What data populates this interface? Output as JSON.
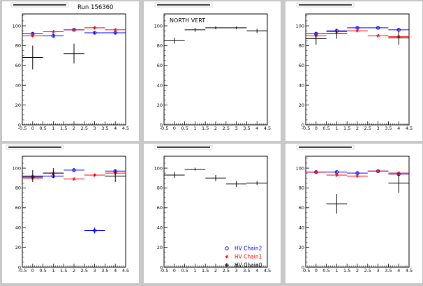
{
  "colors": {
    "background": "#c8c8c8",
    "pad": "#ffffff",
    "frame": "#000000",
    "chain0": "#000000",
    "chain1": "#ff0000",
    "chain2": "#0000ff"
  },
  "legend": {
    "position": "bottom-right of middle-lower pad",
    "entries": [
      {
        "series": "chain2",
        "label": "HV Chain2",
        "marker": "circle",
        "color": "#0000ff"
      },
      {
        "series": "chain1",
        "label": "HV Chain1",
        "marker": "star",
        "color": "#ff0000"
      },
      {
        "series": "chain0",
        "label": "HV Chain0",
        "marker": "plus",
        "color": "#000000"
      }
    ]
  },
  "chart_data": [
    {
      "type": "scatter",
      "pad_title": "",
      "annotation": "Run 156360",
      "xlim": [
        -0.5,
        4.5
      ],
      "ylim": [
        0,
        112
      ],
      "x_ticks": [
        "-0.5",
        "0",
        "0.5",
        "1",
        "1.5",
        "2",
        "2.5",
        "3",
        "3.5",
        "4",
        "4.5"
      ],
      "y_ticks": [
        "0",
        "20",
        "40",
        "60",
        "80",
        "100"
      ],
      "grid": false,
      "series": [
        {
          "key": "chain2",
          "marker": "circle",
          "color": "#0000ff",
          "points": [
            {
              "x": 0,
              "y": 92,
              "yerr": 1.5
            },
            {
              "x": 1,
              "y": 90,
              "yerr": 1.5
            },
            {
              "x": 2,
              "y": 96,
              "yerr": 1.5
            },
            {
              "x": 3,
              "y": 93,
              "yerr": 1.5
            },
            {
              "x": 4,
              "y": 93,
              "yerr": 1.5
            }
          ]
        },
        {
          "key": "chain1",
          "marker": "star",
          "color": "#ff0000",
          "points": [
            {
              "x": 0,
              "y": 90,
              "yerr": 1.5
            },
            {
              "x": 1,
              "y": 94,
              "yerr": 1.5
            },
            {
              "x": 2,
              "y": 96,
              "yerr": 1.5
            },
            {
              "x": 3,
              "y": 98,
              "yerr": 1.5
            },
            {
              "x": 4,
              "y": 96,
              "yerr": 1.5
            }
          ]
        },
        {
          "key": "chain0",
          "marker": "plus",
          "color": "#000000",
          "points": [
            {
              "x": 0,
              "y": 68,
              "yerr": 12
            },
            {
              "x": 2,
              "y": 72,
              "yerr": 10
            }
          ]
        }
      ]
    },
    {
      "type": "scatter",
      "pad_title": "",
      "annotation": "NORTH VERT",
      "xlim": [
        -0.5,
        4.5
      ],
      "ylim": [
        0,
        112
      ],
      "x_ticks": [
        "-0.5",
        "0",
        "0.5",
        "1",
        "1.5",
        "2",
        "2.5",
        "3",
        "3.5",
        "4",
        "4.5"
      ],
      "y_ticks": [
        "0",
        "20",
        "40",
        "60",
        "80",
        "100"
      ],
      "grid": false,
      "series": [
        {
          "key": "chain0",
          "marker": "plus",
          "color": "#000000",
          "points": [
            {
              "x": 0,
              "y": 85,
              "yerr": 3
            },
            {
              "x": 1,
              "y": 96,
              "yerr": 2
            },
            {
              "x": 2,
              "y": 98,
              "yerr": 1.5
            },
            {
              "x": 3,
              "y": 98,
              "yerr": 1.5
            },
            {
              "x": 4,
              "y": 95,
              "yerr": 2
            }
          ]
        }
      ]
    },
    {
      "type": "scatter",
      "pad_title": "",
      "annotation": "",
      "xlim": [
        -0.5,
        4.5
      ],
      "ylim": [
        0,
        112
      ],
      "x_ticks": [
        "-0.5",
        "0",
        "0.5",
        "1",
        "1.5",
        "2",
        "2.5",
        "3",
        "3.5",
        "4",
        "4.5"
      ],
      "y_ticks": [
        "0",
        "20",
        "40",
        "60",
        "80",
        "100"
      ],
      "grid": false,
      "series": [
        {
          "key": "chain2",
          "marker": "circle",
          "color": "#0000ff",
          "points": [
            {
              "x": 0,
              "y": 92,
              "yerr": 2
            },
            {
              "x": 1,
              "y": 95,
              "yerr": 1.5
            },
            {
              "x": 2,
              "y": 98,
              "yerr": 1.5
            },
            {
              "x": 3,
              "y": 98,
              "yerr": 1.5
            },
            {
              "x": 4,
              "y": 96,
              "yerr": 1.5
            }
          ]
        },
        {
          "key": "chain1",
          "marker": "star",
          "color": "#ff0000",
          "points": [
            {
              "x": 0,
              "y": 90,
              "yerr": 2
            },
            {
              "x": 1,
              "y": 94,
              "yerr": 1.5
            },
            {
              "x": 2,
              "y": 95,
              "yerr": 1.5
            },
            {
              "x": 3,
              "y": 90,
              "yerr": 1.5
            },
            {
              "x": 4,
              "y": 89,
              "yerr": 1.5
            }
          ]
        },
        {
          "key": "chain0",
          "marker": "plus",
          "color": "#000000",
          "points": [
            {
              "x": 0,
              "y": 87,
              "yerr": 6
            },
            {
              "x": 1,
              "y": 92,
              "yerr": 5
            },
            {
              "x": 4,
              "y": 88,
              "yerr": 7
            }
          ]
        }
      ]
    },
    {
      "type": "scatter",
      "pad_title": "",
      "annotation": "",
      "xlim": [
        -0.5,
        4.5
      ],
      "ylim": [
        0,
        112
      ],
      "x_ticks": [
        "-0.5",
        "0",
        "0.5",
        "1",
        "1.5",
        "2",
        "2.5",
        "3",
        "3.5",
        "4",
        "4.5"
      ],
      "y_ticks": [
        "0",
        "20",
        "40",
        "60",
        "80",
        "100"
      ],
      "grid": false,
      "series": [
        {
          "key": "chain2",
          "marker": "circle",
          "color": "#0000ff",
          "points": [
            {
              "x": 0,
              "y": 91,
              "yerr": 1.5
            },
            {
              "x": 1,
              "y": 92,
              "yerr": 1.5
            },
            {
              "x": 2,
              "y": 98,
              "yerr": 1.5
            },
            {
              "x": 3,
              "y": 37,
              "yerr": 3
            },
            {
              "x": 4,
              "y": 97,
              "yerr": 1.5
            }
          ]
        },
        {
          "key": "chain1",
          "marker": "star",
          "color": "#ff0000",
          "points": [
            {
              "x": 0,
              "y": 90,
              "yerr": 1.5
            },
            {
              "x": 1,
              "y": 95,
              "yerr": 1.5
            },
            {
              "x": 2,
              "y": 89,
              "yerr": 1.5
            },
            {
              "x": 3,
              "y": 93,
              "yerr": 1.5
            },
            {
              "x": 4,
              "y": 95,
              "yerr": 1.5
            }
          ]
        },
        {
          "key": "chain0",
          "marker": "plus",
          "color": "#000000",
          "points": [
            {
              "x": 0,
              "y": 92,
              "yerr": 6
            },
            {
              "x": 1,
              "y": 95,
              "yerr": 5
            },
            {
              "x": 4,
              "y": 92,
              "yerr": 6
            }
          ]
        }
      ]
    },
    {
      "type": "scatter",
      "pad_title": "",
      "annotation": "",
      "xlim": [
        -0.5,
        4.5
      ],
      "ylim": [
        0,
        112
      ],
      "x_ticks": [
        "-0.5",
        "0",
        "0.5",
        "1",
        "1.5",
        "2",
        "2.5",
        "3",
        "3.5",
        "4",
        "4.5"
      ],
      "y_ticks": [
        "0",
        "20",
        "40",
        "60",
        "80",
        "100"
      ],
      "grid": false,
      "legend": true,
      "series": [
        {
          "key": "chain0",
          "marker": "plus",
          "color": "#000000",
          "points": [
            {
              "x": 0,
              "y": 93,
              "yerr": 3
            },
            {
              "x": 1,
              "y": 99,
              "yerr": 1.5
            },
            {
              "x": 2,
              "y": 90,
              "yerr": 3
            },
            {
              "x": 3,
              "y": 84,
              "yerr": 3
            },
            {
              "x": 4,
              "y": 85,
              "yerr": 2
            }
          ]
        }
      ]
    },
    {
      "type": "scatter",
      "pad_title": "",
      "annotation": "",
      "xlim": [
        -0.5,
        4.5
      ],
      "ylim": [
        0,
        112
      ],
      "x_ticks": [
        "-0.5",
        "0",
        "0.5",
        "1",
        "1.5",
        "2",
        "2.5",
        "3",
        "3.5",
        "4",
        "4.5"
      ],
      "y_ticks": [
        "0",
        "20",
        "40",
        "60",
        "80",
        "100"
      ],
      "grid": false,
      "series": [
        {
          "key": "chain2",
          "marker": "circle",
          "color": "#0000ff",
          "points": [
            {
              "x": 0,
              "y": 96,
              "yerr": 1.5
            },
            {
              "x": 1,
              "y": 96,
              "yerr": 1.5
            },
            {
              "x": 2,
              "y": 95,
              "yerr": 1.5
            },
            {
              "x": 3,
              "y": 97,
              "yerr": 1.5
            },
            {
              "x": 4,
              "y": 94,
              "yerr": 1.5
            }
          ]
        },
        {
          "key": "chain1",
          "marker": "star",
          "color": "#ff0000",
          "points": [
            {
              "x": 0,
              "y": 96,
              "yerr": 1.5
            },
            {
              "x": 1,
              "y": 93,
              "yerr": 1.5
            },
            {
              "x": 2,
              "y": 92,
              "yerr": 1.5
            },
            {
              "x": 3,
              "y": 97,
              "yerr": 1.5
            },
            {
              "x": 4,
              "y": 95,
              "yerr": 1.5
            }
          ]
        },
        {
          "key": "chain0",
          "marker": "plus",
          "color": "#000000",
          "points": [
            {
              "x": 1,
              "y": 64,
              "yerr": 10
            },
            {
              "x": 4,
              "y": 85,
              "yerr": 10
            }
          ]
        }
      ]
    }
  ]
}
